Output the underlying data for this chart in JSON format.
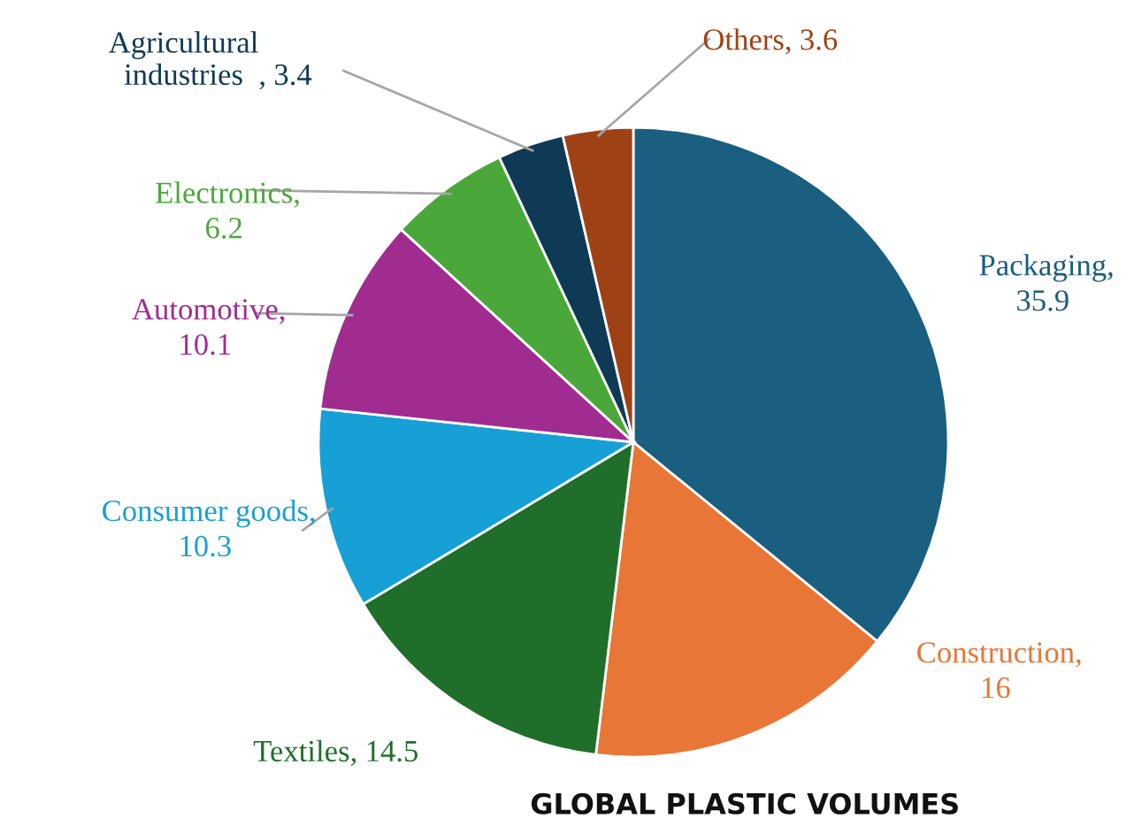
{
  "chart_data": {
    "type": "pie",
    "title": "GLOBAL PLASTIC VOLUMES",
    "categories": [
      "Packaging",
      "Construction",
      "Textiles",
      "Consumer goods",
      "Automotive",
      "Electronics",
      "Agricultural industries",
      "Others"
    ],
    "values": [
      35.9,
      16,
      14.5,
      10.3,
      10.1,
      6.2,
      3.4,
      3.6
    ],
    "colors": [
      "#1a5e80",
      "#e87636",
      "#1f6e2a",
      "#17a0d6",
      "#a02c90",
      "#4aa83a",
      "#0f3a55",
      "#9e4216"
    ],
    "data_labels": true,
    "legend": false,
    "annotations": [
      ","
    ]
  }
}
